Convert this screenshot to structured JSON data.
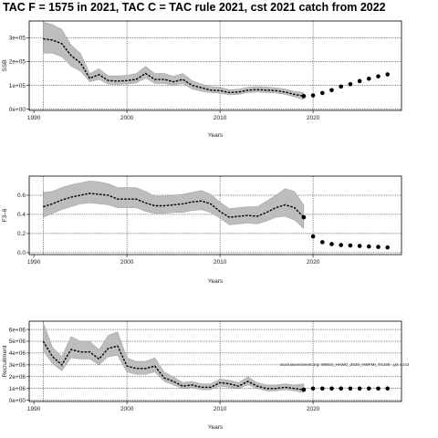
{
  "title": "TAC F = 1575 in 2021, TAC C = TAC rule 2021, cst 2021 catch from 2022",
  "chart_data": [
    {
      "type": "line",
      "ylabel": "SSB",
      "xlabel": "Years",
      "xlim": [
        1989.5,
        2029.5
      ],
      "ylim": [
        -5000,
        370000
      ],
      "xticks": [
        1990,
        2000,
        2010,
        2020
      ],
      "yticks": [
        0,
        100000,
        200000,
        300000
      ],
      "yticklabels": [
        "0e+00",
        "1e+05",
        "2e+05",
        "3e+05"
      ],
      "vlines": [
        1991,
        2000,
        2010,
        2020
      ],
      "historical": {
        "x": [
          1991,
          1992,
          1993,
          1994,
          1995,
          1996,
          1997,
          1998,
          1999,
          2000,
          2001,
          2002,
          2003,
          2004,
          2005,
          2006,
          2007,
          2008,
          2009,
          2010,
          2011,
          2012,
          2013,
          2014,
          2015,
          2016,
          2017,
          2018,
          2019
        ],
        "mean": [
          295000,
          290000,
          275000,
          225000,
          195000,
          130000,
          145000,
          120000,
          118000,
          120000,
          125000,
          150000,
          125000,
          125000,
          115000,
          125000,
          100000,
          90000,
          80000,
          78000,
          70000,
          72000,
          80000,
          82000,
          80000,
          78000,
          72000,
          62000,
          55000
        ],
        "lower": [
          235000,
          235000,
          220000,
          180000,
          160000,
          115000,
          125000,
          105000,
          104000,
          106000,
          110000,
          130000,
          108000,
          108000,
          100000,
          108000,
          85000,
          75000,
          70000,
          67000,
          60000,
          62000,
          70000,
          72000,
          70000,
          68000,
          62000,
          52000,
          40000
        ],
        "upper": [
          365000,
          355000,
          335000,
          270000,
          235000,
          150000,
          170000,
          140000,
          140000,
          142000,
          150000,
          180000,
          150000,
          150000,
          138000,
          150000,
          120000,
          105000,
          95000,
          92000,
          82000,
          84000,
          92000,
          95000,
          93000,
          90000,
          84000,
          75000,
          70000
        ]
      },
      "projection": {
        "x": [
          2019,
          2020,
          2021,
          2022,
          2023,
          2024,
          2025,
          2026,
          2027,
          2028
        ],
        "y": [
          55000,
          58000,
          68000,
          80000,
          95000,
          105000,
          118000,
          128000,
          138000,
          146000
        ]
      }
    },
    {
      "type": "line",
      "ylabel": "F3–6",
      "xlabel": "Years",
      "xlim": [
        1989.5,
        2029.5
      ],
      "ylim": [
        -0.02,
        0.8
      ],
      "xticks": [
        1990,
        2000,
        2010,
        2020
      ],
      "yticks": [
        0.0,
        0.2,
        0.4,
        0.6
      ],
      "yticklabels": [
        "0.0",
        "0.2",
        "0.4",
        "0.6"
      ],
      "vlines": [
        1991,
        2000,
        2010,
        2020
      ],
      "historical": {
        "x": [
          1991,
          1992,
          1993,
          1994,
          1995,
          1996,
          1997,
          1998,
          1999,
          2000,
          2001,
          2002,
          2003,
          2004,
          2005,
          2006,
          2007,
          2008,
          2009,
          2010,
          2011,
          2012,
          2013,
          2014,
          2015,
          2016,
          2017,
          2018,
          2019
        ],
        "mean": [
          0.48,
          0.51,
          0.55,
          0.58,
          0.6,
          0.62,
          0.61,
          0.6,
          0.56,
          0.56,
          0.56,
          0.52,
          0.49,
          0.49,
          0.5,
          0.51,
          0.53,
          0.54,
          0.51,
          0.43,
          0.37,
          0.38,
          0.39,
          0.38,
          0.42,
          0.47,
          0.5,
          0.47,
          0.37
        ],
        "lower": [
          0.37,
          0.41,
          0.45,
          0.48,
          0.51,
          0.52,
          0.51,
          0.5,
          0.47,
          0.47,
          0.47,
          0.43,
          0.41,
          0.41,
          0.42,
          0.42,
          0.44,
          0.45,
          0.42,
          0.36,
          0.29,
          0.3,
          0.31,
          0.3,
          0.33,
          0.37,
          0.38,
          0.34,
          0.25
        ],
        "upper": [
          0.63,
          0.64,
          0.68,
          0.71,
          0.73,
          0.75,
          0.74,
          0.72,
          0.68,
          0.68,
          0.68,
          0.64,
          0.59,
          0.59,
          0.6,
          0.61,
          0.63,
          0.65,
          0.61,
          0.53,
          0.46,
          0.47,
          0.48,
          0.48,
          0.54,
          0.6,
          0.67,
          0.64,
          0.5
        ]
      },
      "projection": {
        "x": [
          2019,
          2020,
          2021,
          2022,
          2023,
          2024,
          2025,
          2026,
          2027,
          2028
        ],
        "y": [
          0.37,
          0.17,
          0.11,
          0.09,
          0.08,
          0.075,
          0.07,
          0.065,
          0.06,
          0.055
        ]
      }
    },
    {
      "type": "line",
      "ylabel": "Recruitment",
      "xlabel": "Years",
      "annotation": "stockassessment.org: WBSS_HAWG_2020_HWFMI_TS195 , git: e2a3",
      "xlim": [
        1989.5,
        2029.5
      ],
      "ylim": [
        -100000,
        6700000
      ],
      "xticks": [
        1990,
        2000,
        2010,
        2020
      ],
      "yticks": [
        0,
        1000000,
        2000000,
        3000000,
        4000000,
        5000000,
        6000000
      ],
      "yticklabels": [
        "0e+00",
        "1e+06",
        "2e+06",
        "3e+06",
        "4e+06",
        "5e+06",
        "6e+06"
      ],
      "vlines": [
        1991,
        2000,
        2010,
        2020
      ],
      "historical": {
        "x": [
          1991,
          1992,
          1993,
          1994,
          1995,
          1996,
          1997,
          1998,
          1999,
          2000,
          2001,
          2002,
          2003,
          2004,
          2005,
          2006,
          2007,
          2008,
          2009,
          2010,
          2011,
          2012,
          2013,
          2014,
          2015,
          2016,
          2017,
          2018,
          2019
        ],
        "mean": [
          5000000,
          3700000,
          3000000,
          4300000,
          4100000,
          4100000,
          3500000,
          4400000,
          4600000,
          2900000,
          2700000,
          2700000,
          2900000,
          1900000,
          1600000,
          1200000,
          1300000,
          1100000,
          1100000,
          1500000,
          1400000,
          1200000,
          1600000,
          1200000,
          1000000,
          1000000,
          1100000,
          1000000,
          900000
        ],
        "lower": [
          4200000,
          3100000,
          2500000,
          3600000,
          3500000,
          3500000,
          3000000,
          3700000,
          3800000,
          2400000,
          2200000,
          2200000,
          2400000,
          1600000,
          1300000,
          1000000,
          1100000,
          900000,
          900000,
          1200000,
          1100000,
          1000000,
          1300000,
          1000000,
          800000,
          800000,
          900000,
          800000,
          650000
        ],
        "upper": [
          6600000,
          4500000,
          3700000,
          5400000,
          5000000,
          5000000,
          4300000,
          5500000,
          5800000,
          3600000,
          3300000,
          3300000,
          3600000,
          2400000,
          2000000,
          1500000,
          1600000,
          1400000,
          1400000,
          1800000,
          1700000,
          1500000,
          2000000,
          1500000,
          1300000,
          1300000,
          1400000,
          1300000,
          1400000
        ]
      },
      "projection": {
        "x": [
          2019,
          2020,
          2021,
          2022,
          2023,
          2024,
          2025,
          2026,
          2027,
          2028
        ],
        "y": [
          900000,
          1000000,
          1000000,
          1000000,
          1000000,
          1000000,
          1000000,
          1000000,
          1000000,
          1000000
        ]
      }
    }
  ]
}
